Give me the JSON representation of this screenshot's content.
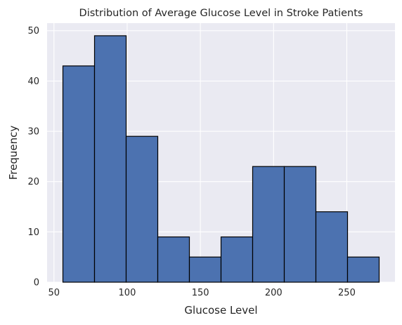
{
  "chart_data": {
    "type": "bar",
    "subtype": "histogram",
    "title": "Distribution of Average Glucose Level in Stroke Patients",
    "xlabel": "Glucose Level",
    "ylabel": "Frequency",
    "bins": [
      {
        "start": 56.1,
        "end": 77.7,
        "value": 43
      },
      {
        "start": 77.7,
        "end": 99.3,
        "value": 49
      },
      {
        "start": 99.3,
        "end": 120.9,
        "value": 29
      },
      {
        "start": 120.9,
        "end": 142.5,
        "value": 9
      },
      {
        "start": 142.5,
        "end": 164.1,
        "value": 5
      },
      {
        "start": 164.1,
        "end": 185.7,
        "value": 9
      },
      {
        "start": 185.7,
        "end": 207.3,
        "value": 23
      },
      {
        "start": 207.3,
        "end": 228.9,
        "value": 23
      },
      {
        "start": 228.9,
        "end": 250.5,
        "value": 14
      },
      {
        "start": 250.5,
        "end": 272.1,
        "value": 5
      }
    ],
    "xlim": [
      45.3,
      282.9
    ],
    "ylim": [
      0,
      51.5
    ],
    "xticks": [
      50,
      100,
      150,
      200,
      250
    ],
    "yticks": [
      0,
      10,
      20,
      30,
      40,
      50
    ],
    "grid": true,
    "colors": {
      "bar_fill": "#4c72b0",
      "bar_edge": "#000000",
      "plot_background": "#eaeaf2",
      "grid": "#ffffff",
      "text": "#262626"
    }
  }
}
